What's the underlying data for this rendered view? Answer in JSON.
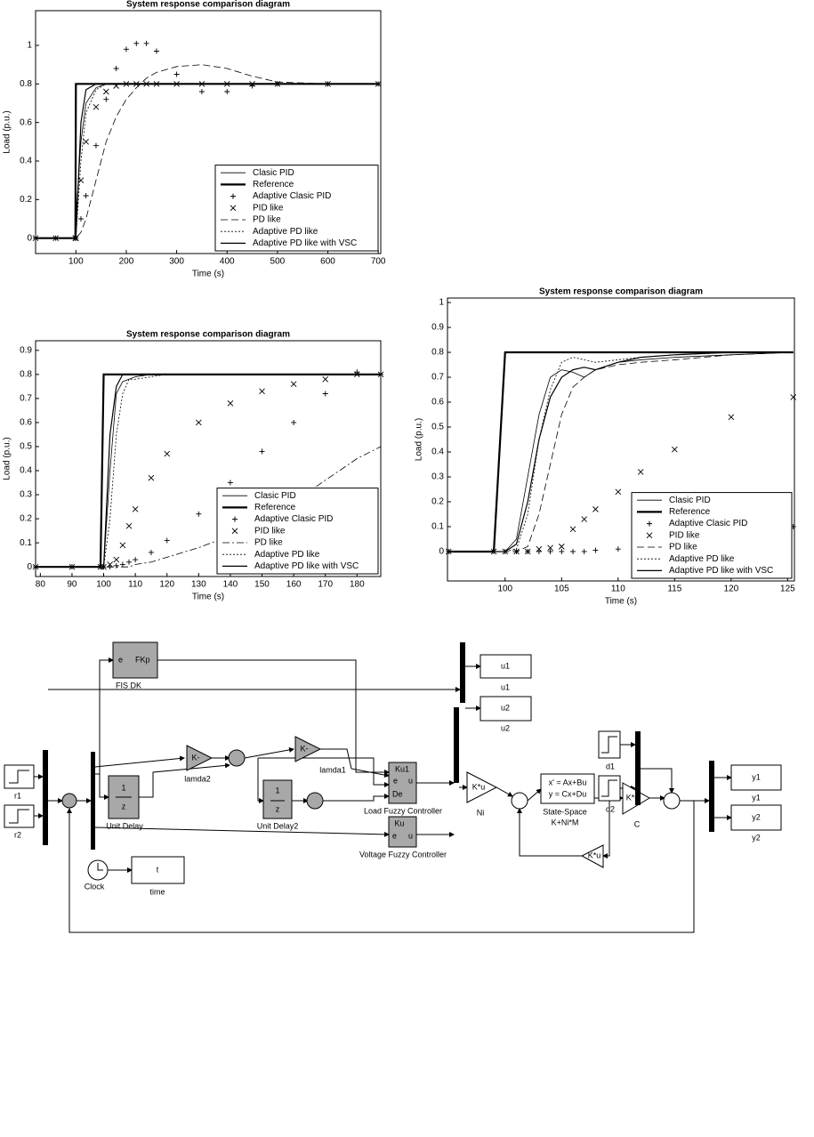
{
  "chart_data": [
    {
      "type": "line",
      "title": "System response comparison diagram",
      "x_label": "Time (s)",
      "y_label": "Load (p.u.)",
      "x": [
        20,
        60,
        99,
        100,
        110,
        120,
        140,
        160,
        180,
        200,
        220,
        240,
        260,
        300,
        350,
        400,
        450,
        500,
        600,
        700
      ],
      "xlim": [
        20,
        705
      ],
      "ylim": [
        -0.08,
        1.18
      ],
      "xticks": [
        100,
        200,
        300,
        400,
        500,
        600,
        700
      ],
      "yticks": [
        0,
        0.2,
        0.4,
        0.6,
        0.8,
        1
      ],
      "grid": false,
      "legend": "lower right",
      "series": [
        {
          "name": "Clasic PID",
          "color": "#000000",
          "line_style": "solid",
          "line_width": 0.8,
          "values": [
            0,
            0,
            0,
            0.1,
            0.5,
            0.7,
            0.78,
            0.8,
            0.8,
            0.8,
            0.8,
            0.8,
            0.8,
            0.8,
            0.8,
            0.8,
            0.8,
            0.8,
            0.8,
            0.8
          ]
        },
        {
          "name": "Reference",
          "color": "#000000",
          "line_style": "solid",
          "line_width": 2.2,
          "values": [
            0,
            0,
            0,
            0.8,
            0.8,
            0.8,
            0.8,
            0.8,
            0.8,
            0.8,
            0.8,
            0.8,
            0.8,
            0.8,
            0.8,
            0.8,
            0.8,
            0.8,
            0.8,
            0.8
          ]
        },
        {
          "name": "Adaptive Clasic PID",
          "color": "#000000",
          "marker": "+",
          "values": [
            0,
            0,
            0,
            0,
            0.1,
            0.22,
            0.48,
            0.72,
            0.88,
            0.98,
            1.01,
            1.01,
            0.97,
            0.85,
            0.76,
            0.76,
            0.79,
            0.8,
            0.8,
            0.8
          ]
        },
        {
          "name": "PID like",
          "color": "#000000",
          "marker": "x",
          "values": [
            0,
            0,
            0,
            0,
            0.3,
            0.5,
            0.68,
            0.76,
            0.79,
            0.8,
            0.8,
            0.8,
            0.8,
            0.8,
            0.8,
            0.8,
            0.8,
            0.8,
            0.8,
            0.8
          ]
        },
        {
          "name": "PD like",
          "color": "#000000",
          "line_style": "dashed",
          "line_width": 0.8,
          "values": [
            0,
            0,
            0,
            0,
            0.03,
            0.1,
            0.3,
            0.5,
            0.63,
            0.72,
            0.78,
            0.83,
            0.86,
            0.89,
            0.9,
            0.88,
            0.84,
            0.81,
            0.8,
            0.8
          ]
        },
        {
          "name": "Adaptive PD like",
          "color": "#000000",
          "line_style": "dotted",
          "line_width": 0.8,
          "values": [
            0,
            0,
            0,
            0,
            0.4,
            0.65,
            0.77,
            0.8,
            0.8,
            0.8,
            0.8,
            0.8,
            0.8,
            0.8,
            0.8,
            0.8,
            0.8,
            0.8,
            0.8,
            0.8
          ]
        },
        {
          "name": "Adaptive PD like with VSC",
          "color": "#000000",
          "line_style": "solid",
          "line_width": 1.2,
          "values": [
            0,
            0,
            0,
            0,
            0.6,
            0.77,
            0.8,
            0.8,
            0.8,
            0.8,
            0.8,
            0.8,
            0.8,
            0.8,
            0.8,
            0.8,
            0.8,
            0.8,
            0.8,
            0.8
          ]
        }
      ]
    },
    {
      "type": "line",
      "title": "System response comparison diagram",
      "x_label": "Time (s)",
      "y_label": "Load (p.u.)",
      "x": [
        78.5,
        90,
        99,
        100,
        102,
        104,
        106,
        108,
        110,
        115,
        120,
        130,
        140,
        150,
        160,
        170,
        180,
        187.5
      ],
      "xlim": [
        78.5,
        187.5
      ],
      "ylim": [
        -0.04,
        0.94
      ],
      "xticks": [
        80,
        90,
        100,
        110,
        120,
        130,
        140,
        150,
        160,
        170,
        180
      ],
      "yticks": [
        0,
        0.1,
        0.2,
        0.3,
        0.4,
        0.5,
        0.6,
        0.7,
        0.8,
        0.9
      ],
      "grid": false,
      "legend": "lower right",
      "series": [
        {
          "name": "Clasic PID",
          "color": "#000000",
          "line_style": "solid",
          "line_width": 0.8,
          "values": [
            0,
            0,
            0,
            0,
            0.4,
            0.72,
            0.77,
            0.78,
            0.79,
            0.8,
            0.8,
            0.8,
            0.8,
            0.8,
            0.8,
            0.8,
            0.8,
            0.8
          ]
        },
        {
          "name": "Reference",
          "color": "#000000",
          "line_style": "solid",
          "line_width": 2.2,
          "values": [
            0,
            0,
            0,
            0.8,
            0.8,
            0.8,
            0.8,
            0.8,
            0.8,
            0.8,
            0.8,
            0.8,
            0.8,
            0.8,
            0.8,
            0.8,
            0.8,
            0.8
          ]
        },
        {
          "name": "Adaptive Clasic PID",
          "color": "#000000",
          "marker": "+",
          "values": [
            0,
            0,
            0,
            0,
            0,
            0.005,
            0.01,
            0.02,
            0.03,
            0.06,
            0.11,
            0.22,
            0.35,
            0.48,
            0.6,
            0.72,
            0.81,
            0.8
          ]
        },
        {
          "name": "PID like",
          "color": "#000000",
          "marker": "x",
          "values": [
            0,
            0,
            0,
            0,
            0.01,
            0.03,
            0.09,
            0.17,
            0.24,
            0.37,
            0.47,
            0.6,
            0.68,
            0.73,
            0.76,
            0.78,
            0.8,
            0.8
          ]
        },
        {
          "name": "PD like",
          "color": "#000000",
          "line_style": "dashdot",
          "line_width": 0.8,
          "values": [
            0,
            0,
            0,
            0,
            0,
            0,
            0,
            0,
            0.01,
            0.02,
            0.04,
            0.08,
            0.13,
            0.19,
            0.27,
            0.36,
            0.45,
            0.5
          ]
        },
        {
          "name": "Adaptive PD like",
          "color": "#000000",
          "line_style": "dotted",
          "line_width": 0.8,
          "values": [
            0,
            0,
            0,
            0,
            0.2,
            0.55,
            0.72,
            0.78,
            0.78,
            0.79,
            0.8,
            0.8,
            0.8,
            0.8,
            0.8,
            0.8,
            0.8,
            0.8
          ]
        },
        {
          "name": "Adaptive PD like with VSC",
          "color": "#000000",
          "line_style": "solid",
          "line_width": 1.2,
          "values": [
            0,
            0,
            0,
            0,
            0.55,
            0.75,
            0.8,
            0.8,
            0.8,
            0.8,
            0.8,
            0.8,
            0.8,
            0.8,
            0.8,
            0.8,
            0.8,
            0.8
          ]
        }
      ]
    },
    {
      "type": "line",
      "title": "System response comparison diagram",
      "x_label": "Time (s)",
      "y_label": "Load (p.u.)",
      "x": [
        95,
        99,
        100,
        101,
        102,
        103,
        104,
        105,
        106,
        107,
        108,
        110,
        112,
        115,
        120,
        125.5
      ],
      "xlim": [
        94.9,
        125.6
      ],
      "ylim": [
        -0.118,
        1.018
      ],
      "xticks": [
        100,
        105,
        110,
        115,
        120,
        125
      ],
      "yticks": [
        0,
        0.1,
        0.2,
        0.3,
        0.4,
        0.5,
        0.6,
        0.7,
        0.8,
        0.9,
        1
      ],
      "grid": false,
      "legend": "lower right",
      "series": [
        {
          "name": "Clasic PID",
          "color": "#000000",
          "line_style": "solid",
          "line_width": 0.8,
          "values": [
            0,
            0,
            0,
            0.05,
            0.3,
            0.55,
            0.7,
            0.73,
            0.72,
            0.7,
            0.73,
            0.76,
            0.77,
            0.78,
            0.79,
            0.8
          ]
        },
        {
          "name": "Reference",
          "color": "#000000",
          "line_style": "solid",
          "line_width": 2.2,
          "values": [
            0,
            0,
            0.8,
            0.8,
            0.8,
            0.8,
            0.8,
            0.8,
            0.8,
            0.8,
            0.8,
            0.8,
            0.8,
            0.8,
            0.8,
            0.8
          ]
        },
        {
          "name": "Adaptive Clasic PID",
          "color": "#000000",
          "marker": "+",
          "values": [
            0,
            0,
            0,
            0,
            0,
            0,
            0,
            0,
            0,
            0,
            0.005,
            0.01,
            0.02,
            0.03,
            0.06,
            0.1
          ]
        },
        {
          "name": "PID like",
          "color": "#000000",
          "marker": "x",
          "values": [
            0,
            0,
            0,
            0,
            0,
            0.01,
            0.015,
            0.02,
            0.09,
            0.13,
            0.17,
            0.24,
            0.32,
            0.41,
            0.54,
            0.62
          ]
        },
        {
          "name": "PD like",
          "color": "#000000",
          "line_style": "dashed",
          "line_width": 0.8,
          "values": [
            0,
            0,
            0,
            0,
            0.02,
            0.15,
            0.35,
            0.55,
            0.66,
            0.7,
            0.73,
            0.75,
            0.76,
            0.77,
            0.79,
            0.8
          ]
        },
        {
          "name": "Adaptive PD like",
          "color": "#000000",
          "line_style": "dotted",
          "line_width": 0.8,
          "values": [
            0,
            0,
            0,
            0.01,
            0.15,
            0.45,
            0.65,
            0.76,
            0.78,
            0.77,
            0.76,
            0.77,
            0.78,
            0.79,
            0.8,
            0.8
          ]
        },
        {
          "name": "Adaptive PD like with VSC",
          "color": "#000000",
          "line_style": "solid",
          "line_width": 1.2,
          "values": [
            0,
            0,
            0,
            0.03,
            0.2,
            0.45,
            0.62,
            0.7,
            0.73,
            0.74,
            0.73,
            0.76,
            0.78,
            0.79,
            0.8,
            0.8
          ]
        }
      ]
    }
  ],
  "diagram": {
    "labels": [
      "e",
      "FKp",
      "FIS DK",
      "u1",
      "u1",
      "u2",
      "u2",
      "r1",
      "r2",
      "1",
      "z",
      "Unit Delay",
      "K-",
      "lamda2",
      "1",
      "z",
      "Unit Delay2",
      "K-",
      "lamda1",
      "Ku1",
      "e",
      "u",
      "De",
      "Load Fuzzy Controller",
      "Ku",
      "e",
      "u",
      "Voltage Fuzzy Controller",
      "K*u",
      "Ni",
      "x' = Ax+Bu",
      "y = Cx+Du",
      "State-Space",
      "K+Ni*M",
      "K*u",
      "C",
      "K*u",
      "d1",
      "d2",
      "y1",
      "y1",
      "y2",
      "y2",
      "Clock",
      "t",
      "time"
    ]
  }
}
